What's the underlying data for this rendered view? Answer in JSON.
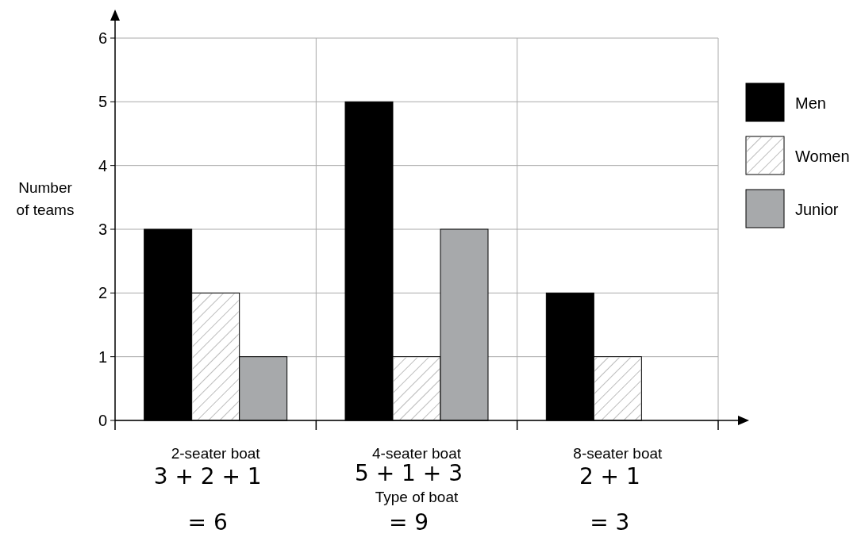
{
  "chart_data": {
    "type": "bar",
    "xlabel": "Type of boat",
    "ylabel": "Number of teams",
    "categories": [
      "2-seater boat",
      "4-seater boat",
      "8-seater boat"
    ],
    "series": [
      {
        "name": "Men",
        "color": "#000000",
        "values": [
          3,
          5,
          2
        ]
      },
      {
        "name": "Women",
        "color": "#ffffff",
        "values": [
          2,
          1,
          1
        ]
      },
      {
        "name": "Junior",
        "color": "#a7a9ab",
        "values": [
          1,
          3,
          0
        ]
      }
    ],
    "ylim": [
      0,
      6
    ],
    "yticks": [
      0,
      1,
      2,
      3,
      4,
      5,
      6
    ],
    "grid": true,
    "legend": "right",
    "annotations": [
      "3 + 2 + 1",
      "= 6",
      "5 + 1 + 3",
      "= 9",
      "2 + 1",
      "= 3"
    ]
  }
}
